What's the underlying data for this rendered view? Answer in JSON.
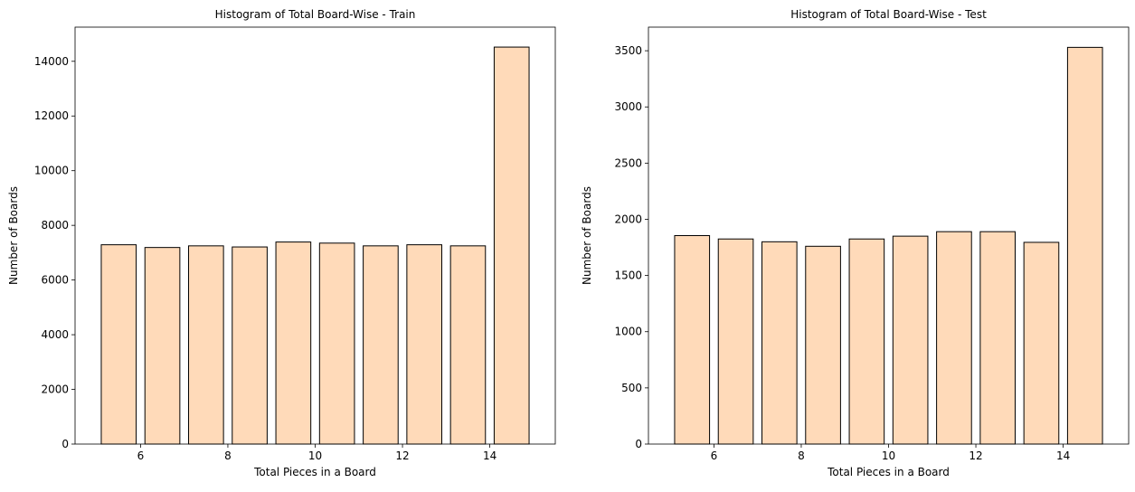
{
  "chart_data": [
    {
      "type": "bar",
      "title": "Histogram of Total Board-Wise - Train",
      "xlabel": "Total Pieces in a Board",
      "ylabel": "Number of Boards",
      "x": [
        5.5,
        6.5,
        7.5,
        8.5,
        9.5,
        10.5,
        11.5,
        12.5,
        13.5,
        14.5
      ],
      "values": [
        7290,
        7190,
        7250,
        7210,
        7390,
        7350,
        7250,
        7290,
        7250,
        14520
      ],
      "bar_width": 0.8,
      "xlim": [
        4.5,
        15.5
      ],
      "ylim": [
        0,
        15250
      ],
      "xticks": [
        6,
        8,
        10,
        12,
        14
      ],
      "yticks": [
        0,
        2000,
        4000,
        6000,
        8000,
        10000,
        12000,
        14000
      ],
      "bar_color": "#ffdab9",
      "edge_color": "#000000",
      "grid": false
    },
    {
      "type": "bar",
      "title": "Histogram of Total Board-Wise - Test",
      "xlabel": "Total Pieces in a Board",
      "ylabel": "Number of Boards",
      "x": [
        5.5,
        6.5,
        7.5,
        8.5,
        9.5,
        10.5,
        11.5,
        12.5,
        13.5,
        14.5
      ],
      "values": [
        1855,
        1825,
        1800,
        1760,
        1825,
        1850,
        1890,
        1890,
        1795,
        3530
      ],
      "bar_width": 0.8,
      "xlim": [
        4.5,
        15.5
      ],
      "ylim": [
        0,
        3710
      ],
      "xticks": [
        6,
        8,
        10,
        12,
        14
      ],
      "yticks": [
        0,
        500,
        1000,
        1500,
        2000,
        2500,
        3000,
        3500
      ],
      "bar_color": "#ffdab9",
      "edge_color": "#000000",
      "grid": false
    }
  ]
}
